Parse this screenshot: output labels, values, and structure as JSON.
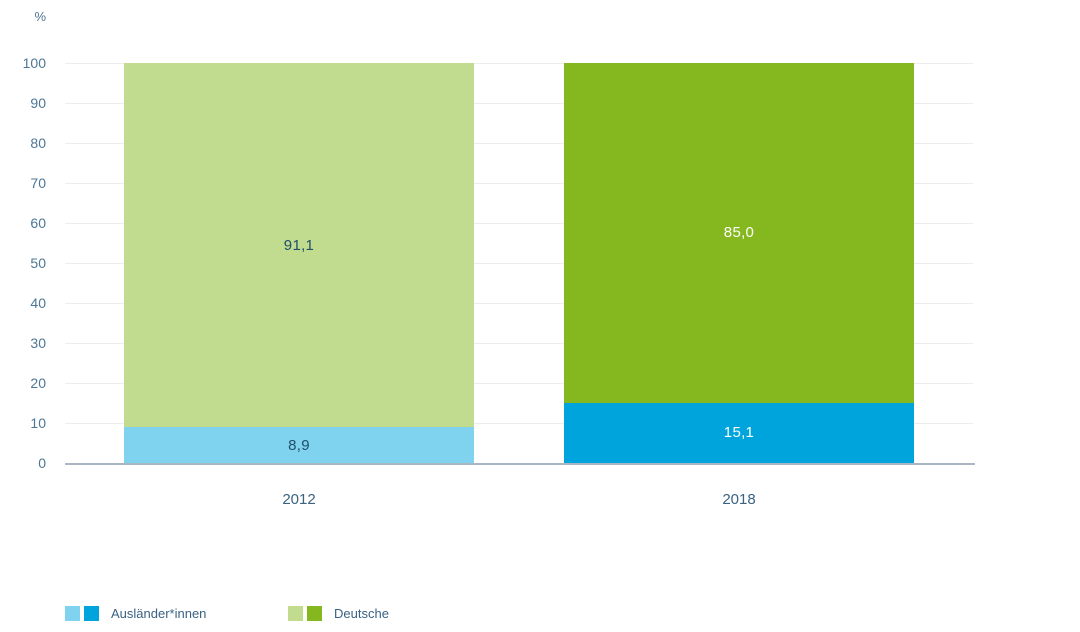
{
  "chart_data": {
    "type": "bar",
    "stacked": true,
    "title": "",
    "unit_label": "%",
    "categories": [
      "2012",
      "2018"
    ],
    "series": [
      {
        "name": "Ausländer*innen",
        "values": [
          8.9,
          15.1
        ],
        "value_labels": [
          "8,9",
          "15,1"
        ],
        "colors": [
          "#7fd3ee",
          "#00a4dc"
        ],
        "value_label_colors": [
          "#1f4f69",
          "#ffffff"
        ]
      },
      {
        "name": "Deutsche",
        "values": [
          91.1,
          85.0
        ],
        "value_labels": [
          "91,1",
          "85,0"
        ],
        "colors": [
          "#c2dc8f",
          "#85b71e"
        ],
        "value_label_colors": [
          "#1f4f69",
          "#ffffff"
        ]
      }
    ],
    "ylim": [
      0,
      100
    ],
    "yticks": [
      0,
      10,
      20,
      30,
      40,
      50,
      60,
      70,
      80,
      90,
      100
    ],
    "grid": true,
    "xlabel": "",
    "ylabel": "%",
    "legend_position": "bottom-left"
  },
  "legend": {
    "items": [
      {
        "label": "Ausländer*innen",
        "swatches": [
          "#7fd3ee",
          "#00a4dc"
        ]
      },
      {
        "label": "Deutsche",
        "swatches": [
          "#c2dc8f",
          "#85b71e"
        ]
      }
    ]
  },
  "colors": {
    "axis_text": "#4d7795",
    "category_text": "#3a6282",
    "value_text_dark": "#1f4f69",
    "value_text_light": "#ffffff",
    "gridline": "#ededed",
    "baseline": "#a9b7c4",
    "background": "#ffffff"
  }
}
